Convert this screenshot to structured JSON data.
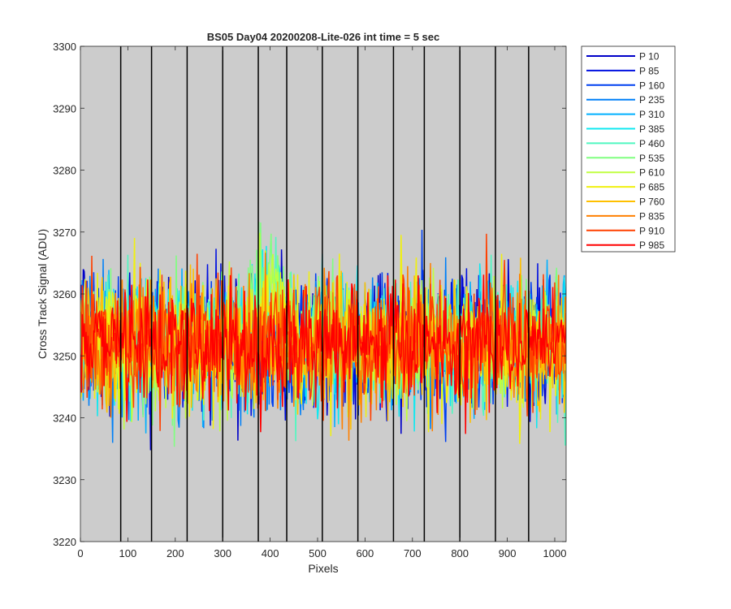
{
  "chart_data": {
    "type": "line",
    "title": "BS05 Day04 20200208-Lite-026 int time = 5 sec",
    "xlabel": "Pixels",
    "ylabel": "Cross Track Signal (ADU)",
    "xlim": [
      0,
      1024
    ],
    "ylim": [
      3220,
      3300
    ],
    "xticks": [
      0,
      100,
      200,
      300,
      400,
      500,
      600,
      700,
      800,
      900,
      1000
    ],
    "yticks": [
      3220,
      3230,
      3240,
      3250,
      3260,
      3270,
      3280,
      3290,
      3300
    ],
    "background": "#cccccc",
    "grid": false,
    "legend_position": "outside-top-right",
    "vertical_markers": [
      85,
      150,
      225,
      300,
      375,
      435,
      510,
      585,
      660,
      725,
      800,
      875,
      945
    ],
    "noise_profile": {
      "center": 3252,
      "sigma": 5,
      "bump_center_x": 400,
      "bump_width": 45,
      "bump_amplitude": 8
    },
    "series": [
      {
        "name": "P 10",
        "color": "#0000c8"
      },
      {
        "name": "P 85",
        "color": "#0010e0"
      },
      {
        "name": "P 160",
        "color": "#0040f0"
      },
      {
        "name": "P 235",
        "color": "#0080f8"
      },
      {
        "name": "P 310",
        "color": "#00b0ff"
      },
      {
        "name": "P 385",
        "color": "#10e8f0"
      },
      {
        "name": "P 460",
        "color": "#50f8c0"
      },
      {
        "name": "P 535",
        "color": "#80ff80"
      },
      {
        "name": "P 610",
        "color": "#c0ff40"
      },
      {
        "name": "P 685",
        "color": "#f0f010"
      },
      {
        "name": "P 760",
        "color": "#ffc000"
      },
      {
        "name": "P 835",
        "color": "#ff8000"
      },
      {
        "name": "P 910",
        "color": "#ff4000"
      },
      {
        "name": "P 985",
        "color": "#ff0000"
      }
    ]
  }
}
